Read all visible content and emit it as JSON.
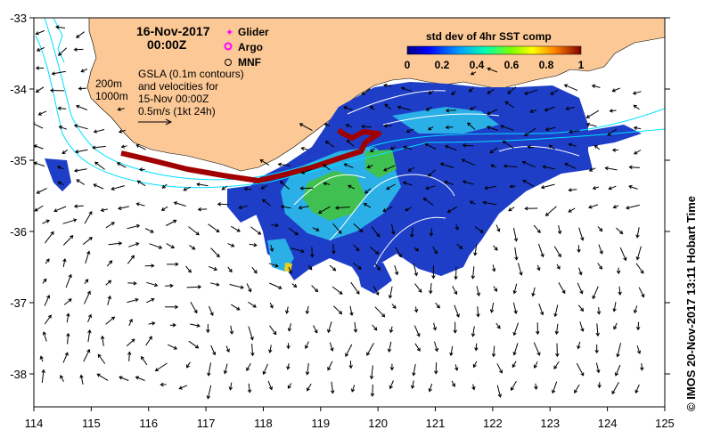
{
  "map": {
    "date_line1": "16-Nov-2017",
    "date_line2": "00:00Z",
    "legend": {
      "glider": "Glider",
      "argo": "Argo",
      "mnf": "MNF",
      "glider_color": "#ff00ff",
      "argo_color": "#ff00ff",
      "mnf_color": "#000000"
    },
    "depth_labels": {
      "d200": "200m",
      "d1000": "1000m"
    },
    "gsla_lines": [
      "GSLA (0.1m contours)",
      "and velocities for",
      "15-Nov 00:00Z",
      "0.5m/s (1kt 24h)"
    ],
    "colorbar": {
      "title": "std dev of 4hr SST comp",
      "ticks": [
        "0",
        "0.2",
        "0.4",
        "0.6",
        "0.8",
        "1"
      ]
    },
    "credit": "© IMOS 20-Nov-2017 13:11 Hobart Time",
    "x_ticks": [
      "114",
      "115",
      "116",
      "117",
      "118",
      "119",
      "120",
      "121",
      "122",
      "123",
      "124",
      "125"
    ],
    "y_ticks": [
      "-33",
      "-34",
      "-35",
      "-36",
      "-37",
      "-38"
    ],
    "colors": {
      "land": "#fcc996",
      "ocean": "#ffffff",
      "sst_low": "#1a3cc8",
      "sst_mid": "#2db4e0",
      "sst_high": "#40c040",
      "glider_track": "#a00000",
      "contour": "#00e0ff"
    }
  }
}
